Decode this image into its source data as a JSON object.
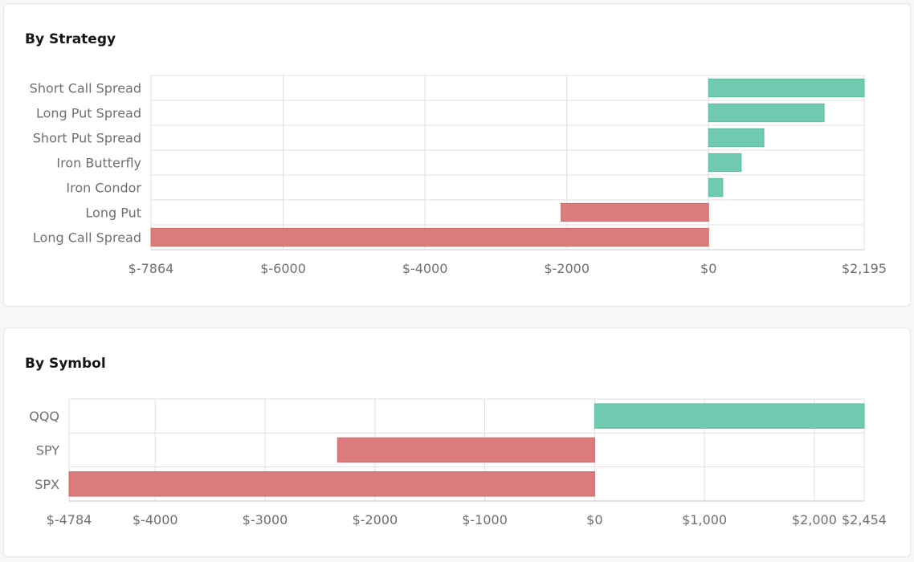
{
  "colors": {
    "positive": "#6fcaaf",
    "negative": "#dc7b7b",
    "grid": "#e0e0e0",
    "axis": "#c6c6c6"
  },
  "strategy_panel": {
    "title": "By Strategy"
  },
  "symbol_panel": {
    "title": "By Symbol"
  },
  "chart_data": [
    {
      "type": "bar",
      "orientation": "horizontal",
      "title": "By Strategy",
      "categories": [
        "Short Call Spread",
        "Long Put Spread",
        "Short Put Spread",
        "Iron Butterfly",
        "Iron Condor",
        "Long Put",
        "Long Call Spread"
      ],
      "values": [
        2195,
        1630,
        780,
        460,
        200,
        -2080,
        -7864
      ],
      "xlim": [
        -7864,
        2195
      ],
      "tick_values": [
        -7864,
        -6000,
        -4000,
        -2000,
        0,
        2195
      ],
      "tick_labels": [
        "$-7864",
        "$-6000",
        "$-4000",
        "$-2000",
        "$0",
        "$2,195"
      ],
      "grid": true
    },
    {
      "type": "bar",
      "orientation": "horizontal",
      "title": "By Symbol",
      "categories": [
        "QQQ",
        "SPY",
        "SPX"
      ],
      "values": [
        2454,
        -2340,
        -4784
      ],
      "xlim": [
        -4784,
        2454
      ],
      "tick_values": [
        -4784,
        -4000,
        -3000,
        -2000,
        -1000,
        0,
        1000,
        2000,
        2454
      ],
      "tick_labels": [
        "$-4784",
        "$-4000",
        "$-3000",
        "$-2000",
        "$-1000",
        "$0",
        "$1,000",
        "$2,000",
        "$2,454"
      ],
      "grid": true
    }
  ]
}
